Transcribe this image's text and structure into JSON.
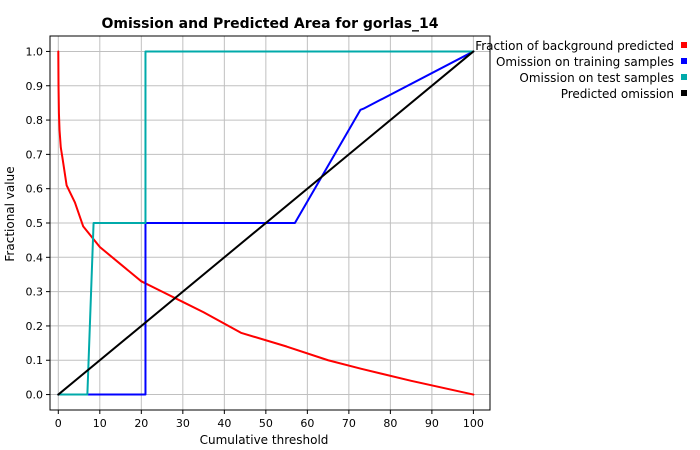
{
  "chart_data": {
    "type": "line",
    "title": "Omission and Predicted Area for gorlas_14",
    "xlabel": "Cumulative threshold",
    "ylabel": "Fractional value",
    "xlim": [
      -2,
      104
    ],
    "ylim": [
      -0.045,
      1.045
    ],
    "xticks": [
      0,
      10,
      20,
      30,
      40,
      50,
      60,
      70,
      80,
      90,
      100
    ],
    "yticks": [
      0.0,
      0.1,
      0.2,
      0.3,
      0.4,
      0.5,
      0.6,
      0.7,
      0.8,
      0.9,
      1.0
    ],
    "xtick_labels": [
      "0",
      "10",
      "20",
      "30",
      "40",
      "50",
      "60",
      "70",
      "80",
      "90",
      "100"
    ],
    "ytick_labels": [
      "0.0",
      "0.1",
      "0.2",
      "0.3",
      "0.4",
      "0.5",
      "0.6",
      "0.7",
      "0.8",
      "0.9",
      "1.0"
    ],
    "grid": true,
    "legend_position": "right",
    "series": [
      {
        "name": "Fraction of background predicted",
        "color": "#ff0000",
        "x": [
          0,
          0.05,
          0.15,
          0.3,
          0.6,
          1,
          2,
          4,
          6,
          10,
          15,
          20,
          25,
          30,
          35,
          44,
          55,
          65,
          73,
          85,
          100
        ],
        "y": [
          1.0,
          0.9,
          0.82,
          0.77,
          0.72,
          0.69,
          0.61,
          0.56,
          0.49,
          0.43,
          0.38,
          0.33,
          0.3,
          0.27,
          0.24,
          0.18,
          0.14,
          0.1,
          0.075,
          0.04,
          0.0
        ]
      },
      {
        "name": "Omission on training samples",
        "color": "#0000ff",
        "x": [
          0,
          21,
          21,
          57,
          72.8,
          73.5,
          100
        ],
        "y": [
          0.0,
          0.0,
          0.5,
          0.5,
          0.83,
          0.833,
          1.0
        ]
      },
      {
        "name": "Omission on test samples",
        "color": "#00aaaa",
        "x": [
          0,
          7,
          8.5,
          21,
          21,
          100
        ],
        "y": [
          0.0,
          0.0,
          0.5,
          0.5,
          1.0,
          1.0
        ]
      },
      {
        "name": "Predicted omission",
        "color": "#000000",
        "x": [
          0,
          100
        ],
        "y": [
          0.0,
          1.0
        ]
      }
    ]
  }
}
